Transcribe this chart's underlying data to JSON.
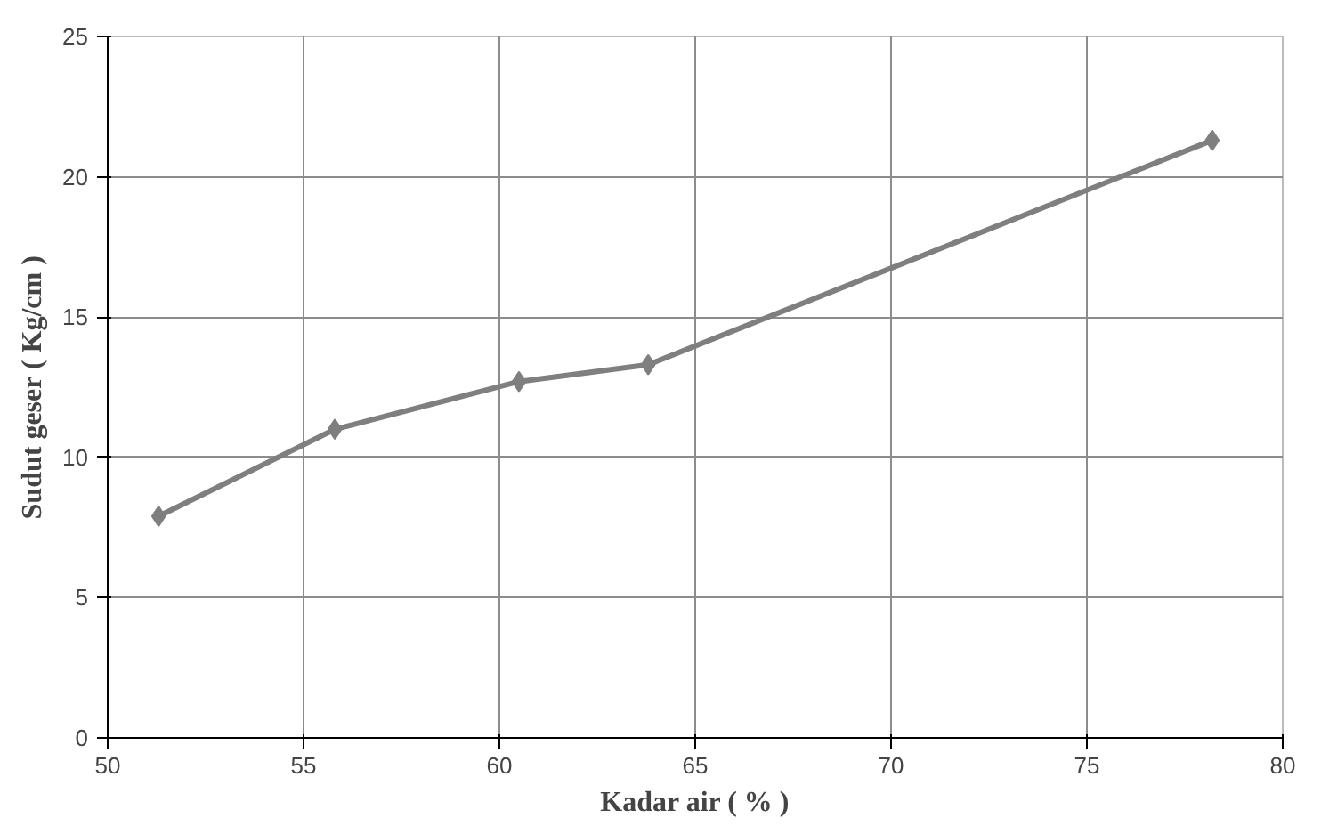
{
  "chart_data": {
    "type": "line",
    "xlabel": "Kadar air ( % )",
    "ylabel": "Sudut geser ( Kg/cm )",
    "x": [
      51.3,
      55.8,
      60.5,
      63.8,
      78.2
    ],
    "series": [
      {
        "color": "#7f7f7f",
        "values": [
          7.9,
          11.0,
          12.7,
          13.3,
          21.3
        ]
      }
    ],
    "xlim": [
      50,
      80
    ],
    "xticks": [
      50,
      55,
      60,
      65,
      70,
      75,
      80
    ],
    "ylim": [
      0,
      25
    ],
    "yticks": [
      0,
      5,
      10,
      15,
      20,
      25
    ],
    "grid": true,
    "marker": "diamond",
    "line_style": "solid"
  }
}
